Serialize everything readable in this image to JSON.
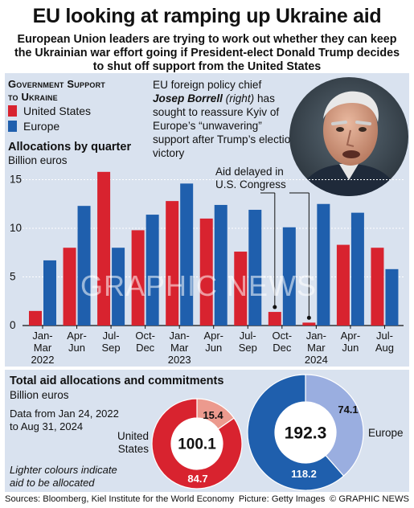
{
  "header": {
    "title": "EU looking at ramping up Ukraine aid",
    "subtitle": "European Union leaders are trying to work out whether they can keep the Ukrainian war effort going if President-elect Donald Trump decides to shut off support from the United States"
  },
  "legend": {
    "title_line1": "Government Support",
    "title_line2": "to Ukraine",
    "items": [
      {
        "label": "United States",
        "color": "#d8232f"
      },
      {
        "label": "Europe",
        "color": "#1f5fad"
      }
    ]
  },
  "quote": {
    "line1": "EU foreign policy chief",
    "name": "Josep Borrell",
    "name_suffix": "(right)",
    "rest": "has sought to reassure Kyiv of Europe’s “unwavering” support after Trump’s election victory"
  },
  "allocations": {
    "title": "Allocations by quarter",
    "unit": "Billion euros",
    "annotation_line1": "Aid delayed in",
    "annotation_line2": "U.S. Congress"
  },
  "chart_data": [
    {
      "type": "bar",
      "title": "Allocations by quarter",
      "ylabel": "Billion euros",
      "ylim": [
        0,
        16
      ],
      "yticks": [
        0,
        5,
        10,
        15
      ],
      "categories": [
        "Jan-Mar 2022",
        "Apr-Jun",
        "Jul-Sep",
        "Oct-Dec",
        "Jan-Mar 2023",
        "Apr-Jun",
        "Jul-Sep",
        "Oct-Dec",
        "Jan-Mar 2024",
        "Apr-Jun",
        "Jul-Aug"
      ],
      "tick_labels": [
        [
          "Jan-",
          "Mar",
          "2022"
        ],
        [
          "Apr-",
          "Jun"
        ],
        [
          "Jul-",
          "Sep"
        ],
        [
          "Oct-",
          "Dec"
        ],
        [
          "Jan-",
          "Mar",
          "2023"
        ],
        [
          "Apr-",
          "Jun"
        ],
        [
          "Jul-",
          "Sep"
        ],
        [
          "Oct-",
          "Dec"
        ],
        [
          "Jan-",
          "Mar",
          "2024"
        ],
        [
          "Apr-",
          "Jun"
        ],
        [
          "Jul-",
          "Aug"
        ]
      ],
      "series": [
        {
          "name": "United States",
          "color": "#d8232f",
          "values": [
            1.5,
            8.0,
            15.8,
            9.8,
            12.8,
            11.0,
            7.6,
            1.4,
            0.3,
            8.3,
            8.0
          ]
        },
        {
          "name": "Europe",
          "color": "#1f5fad",
          "values": [
            6.7,
            12.3,
            8.0,
            11.4,
            14.6,
            12.4,
            11.9,
            10.1,
            12.5,
            11.6,
            5.8
          ]
        }
      ]
    },
    {
      "type": "pie",
      "title": "Total aid allocations and commitments",
      "unit": "Billion euros",
      "name": "United States",
      "total": "100.1",
      "slices": [
        {
          "label": "allocated",
          "value": 84.7,
          "color": "#d8232f"
        },
        {
          "label": "to be allocated",
          "value": 15.4,
          "color": "#ec9a8e"
        }
      ]
    },
    {
      "type": "pie",
      "name": "Europe",
      "total": "192.3",
      "slices": [
        {
          "label": "allocated",
          "value": 118.2,
          "color": "#1f5fad"
        },
        {
          "label": "to be allocated",
          "value": 74.1,
          "color": "#9aaee0"
        }
      ]
    }
  ],
  "totals": {
    "title": "Total aid allocations and commitments",
    "unit": "Billion euros",
    "date_line1": "Data from Jan 24, 2022",
    "date_line2": "to Aug 31, 2024",
    "note_line1": "Lighter colours indicate",
    "note_line2": "aid to be allocated",
    "us_label_line1": "United",
    "us_label_line2": "States",
    "eu_label": "Europe"
  },
  "footer": {
    "sources": "Sources: Bloomberg, Kiel Institute for the World Economy",
    "picture": "Picture: Getty Images",
    "credit": "© GRAPHIC NEWS"
  },
  "watermark": "GRAPHIC NEWS"
}
